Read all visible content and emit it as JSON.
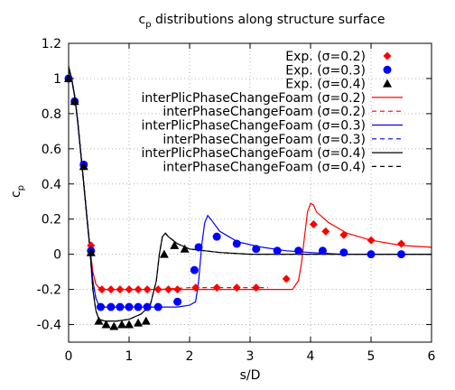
{
  "chart_data": {
    "type": "line",
    "title": "c",
    "title_sub": "p",
    "title_rest": " distributions along structure surface",
    "xlabel": "s/D",
    "ylabel": "c",
    "ylabel_sub": "p",
    "xlim": [
      0,
      6
    ],
    "ylim": [
      -0.5,
      1.2
    ],
    "xticks": [
      0,
      1,
      2,
      3,
      4,
      5,
      6
    ],
    "yticks": [
      -0.4,
      -0.2,
      0,
      0.2,
      0.4,
      0.6,
      0.8,
      1,
      1.2
    ],
    "xtick_labels": [
      "0",
      "1",
      "2",
      "3",
      "4",
      "5",
      "6"
    ],
    "ytick_labels": [
      "-0.4",
      "-0.2",
      "0",
      "0.2",
      "0.4",
      "0.6",
      "0.8",
      "1",
      "1.2"
    ],
    "grid": true,
    "legend_position": "top-right",
    "series": [
      {
        "name": "Exp. (σ=0.2)",
        "kind": "points",
        "marker": "diamond",
        "color": "#ff0000",
        "x": [
          0.0,
          0.1,
          0.25,
          0.37,
          0.55,
          0.7,
          0.85,
          1.0,
          1.15,
          1.3,
          1.48,
          1.65,
          1.8,
          2.1,
          2.45,
          2.78,
          3.1,
          3.6,
          4.05,
          4.25,
          4.55,
          5.0,
          5.5
        ],
        "y": [
          1.0,
          0.87,
          0.5,
          0.05,
          -0.2,
          -0.2,
          -0.2,
          -0.2,
          -0.2,
          -0.2,
          -0.2,
          -0.2,
          -0.2,
          -0.19,
          -0.19,
          -0.19,
          -0.19,
          -0.14,
          0.17,
          0.13,
          0.11,
          0.08,
          0.06
        ]
      },
      {
        "name": "Exp. (σ=0.3)",
        "kind": "points",
        "marker": "circle",
        "color": "#0000ff",
        "x": [
          0.0,
          0.1,
          0.25,
          0.37,
          0.53,
          0.7,
          0.85,
          1.0,
          1.15,
          1.3,
          1.48,
          1.8,
          2.08,
          2.15,
          2.45,
          2.78,
          3.1,
          3.45,
          3.8,
          4.2,
          4.55,
          5.0,
          5.5
        ],
        "y": [
          1.0,
          0.87,
          0.51,
          0.02,
          -0.3,
          -0.3,
          -0.3,
          -0.3,
          -0.3,
          -0.3,
          -0.3,
          -0.27,
          -0.09,
          0.04,
          0.1,
          0.06,
          0.03,
          0.02,
          0.02,
          0.02,
          0.01,
          0.0,
          0.0
        ]
      },
      {
        "name": "Exp. (σ=0.4)",
        "kind": "points",
        "marker": "triangle",
        "color": "#000000",
        "x": [
          0.0,
          0.1,
          0.25,
          0.37,
          0.5,
          0.62,
          0.75,
          0.88,
          1.0,
          1.15,
          1.28,
          1.58,
          1.75,
          1.92
        ],
        "y": [
          1.0,
          0.87,
          0.5,
          0.01,
          -0.38,
          -0.4,
          -0.41,
          -0.4,
          -0.4,
          -0.39,
          -0.38,
          0.0,
          0.05,
          0.03
        ]
      },
      {
        "name": "interPlicPhaseChangeFoam (σ=0.2)",
        "kind": "line",
        "dash": "solid",
        "color": "#ff0000",
        "x": [
          0.0,
          0.05,
          0.1,
          0.15,
          0.2,
          0.25,
          0.3,
          0.35,
          0.4,
          0.45,
          0.5,
          0.6,
          0.8,
          1.0,
          1.5,
          2.0,
          2.5,
          3.0,
          3.5,
          3.7,
          3.8,
          3.85,
          3.9,
          3.95,
          4.0,
          4.05,
          4.1,
          4.3,
          4.6,
          5.0,
          5.5,
          6.0
        ],
        "y": [
          1.06,
          1.0,
          0.9,
          0.76,
          0.58,
          0.4,
          0.22,
          0.04,
          -0.1,
          -0.17,
          -0.19,
          -0.2,
          -0.2,
          -0.2,
          -0.2,
          -0.2,
          -0.2,
          -0.2,
          -0.2,
          -0.2,
          -0.15,
          -0.05,
          0.1,
          0.24,
          0.29,
          0.28,
          0.24,
          0.18,
          0.12,
          0.08,
          0.05,
          0.04
        ]
      },
      {
        "name": "interPhaseChangeFoam (σ=0.2)",
        "kind": "line",
        "dash": "dashed",
        "color": "#ff0000",
        "x": [
          0.0,
          0.05,
          0.1,
          0.15,
          0.2,
          0.25,
          0.3,
          0.35,
          0.4,
          0.45,
          0.5,
          0.6,
          1.0,
          1.5,
          2.0,
          2.5,
          3.0,
          3.3
        ],
        "y": [
          1.05,
          1.0,
          0.9,
          0.76,
          0.58,
          0.4,
          0.22,
          0.04,
          -0.1,
          -0.17,
          -0.19,
          -0.2,
          -0.2,
          -0.2,
          -0.19,
          -0.19,
          -0.19,
          -0.19
        ]
      },
      {
        "name": "interPlicPhaseChangeFoam (σ=0.3)",
        "kind": "line",
        "dash": "solid",
        "color": "#0000ff",
        "x": [
          0.0,
          0.05,
          0.1,
          0.15,
          0.2,
          0.25,
          0.3,
          0.35,
          0.4,
          0.45,
          0.5,
          0.6,
          0.8,
          1.0,
          1.4,
          1.8,
          2.0,
          2.1,
          2.15,
          2.2,
          2.25,
          2.3,
          2.35,
          2.5,
          2.8,
          3.2,
          3.6,
          4.0,
          4.5,
          5.0,
          5.5,
          6.0
        ],
        "y": [
          1.06,
          1.0,
          0.9,
          0.76,
          0.58,
          0.4,
          0.22,
          0.04,
          -0.15,
          -0.25,
          -0.29,
          -0.3,
          -0.3,
          -0.3,
          -0.3,
          -0.3,
          -0.29,
          -0.27,
          -0.15,
          0.05,
          0.18,
          0.22,
          0.2,
          0.13,
          0.07,
          0.04,
          0.02,
          0.01,
          0.0,
          0.0,
          0.0,
          0.0
        ]
      },
      {
        "name": "interPhaseChangeFoam (σ=0.3)",
        "kind": "line",
        "dash": "dashed",
        "color": "#0000ff",
        "x": [
          0.0,
          0.05,
          0.1,
          0.15,
          0.2,
          0.25,
          0.3,
          0.35,
          0.4,
          0.45,
          0.5,
          0.6,
          0.8,
          1.0,
          1.3
        ],
        "y": [
          1.05,
          1.0,
          0.9,
          0.76,
          0.58,
          0.4,
          0.22,
          0.04,
          -0.15,
          -0.25,
          -0.29,
          -0.3,
          -0.3,
          -0.3,
          -0.3
        ]
      },
      {
        "name": "interPlicPhaseChangeFoam (σ=0.4)",
        "kind": "line",
        "dash": "solid",
        "color": "#000000",
        "x": [
          0.0,
          0.05,
          0.1,
          0.15,
          0.2,
          0.25,
          0.3,
          0.35,
          0.4,
          0.45,
          0.5,
          0.6,
          0.8,
          1.0,
          1.2,
          1.35,
          1.45,
          1.5,
          1.55,
          1.6,
          1.65,
          1.8,
          2.0,
          2.5,
          3.0,
          4.0,
          5.0,
          6.0
        ],
        "y": [
          1.07,
          1.0,
          0.9,
          0.76,
          0.58,
          0.4,
          0.22,
          0.04,
          -0.2,
          -0.32,
          -0.37,
          -0.38,
          -0.38,
          -0.37,
          -0.34,
          -0.29,
          -0.15,
          0.0,
          0.1,
          0.12,
          0.1,
          0.06,
          0.03,
          0.01,
          0.0,
          0.0,
          0.0,
          0.0
        ]
      },
      {
        "name": "interPhaseChangeFoam (σ=0.4)",
        "kind": "line",
        "dash": "dashed",
        "color": "#000000",
        "x": [
          0.0,
          0.05,
          0.1,
          0.15,
          0.2,
          0.25,
          0.3,
          0.35,
          0.4,
          0.45,
          0.5,
          0.6,
          0.8,
          1.0,
          1.2,
          1.35,
          1.45,
          1.5,
          1.55,
          1.6,
          1.65,
          1.8,
          2.0,
          2.5,
          3.0,
          4.0,
          5.0,
          6.0
        ],
        "y": [
          1.05,
          1.0,
          0.9,
          0.76,
          0.58,
          0.4,
          0.22,
          0.04,
          -0.2,
          -0.32,
          -0.37,
          -0.38,
          -0.38,
          -0.37,
          -0.34,
          -0.29,
          -0.15,
          0.0,
          0.1,
          0.12,
          0.1,
          0.06,
          0.03,
          0.01,
          0.0,
          0.0,
          0.0,
          0.0
        ]
      }
    ]
  }
}
